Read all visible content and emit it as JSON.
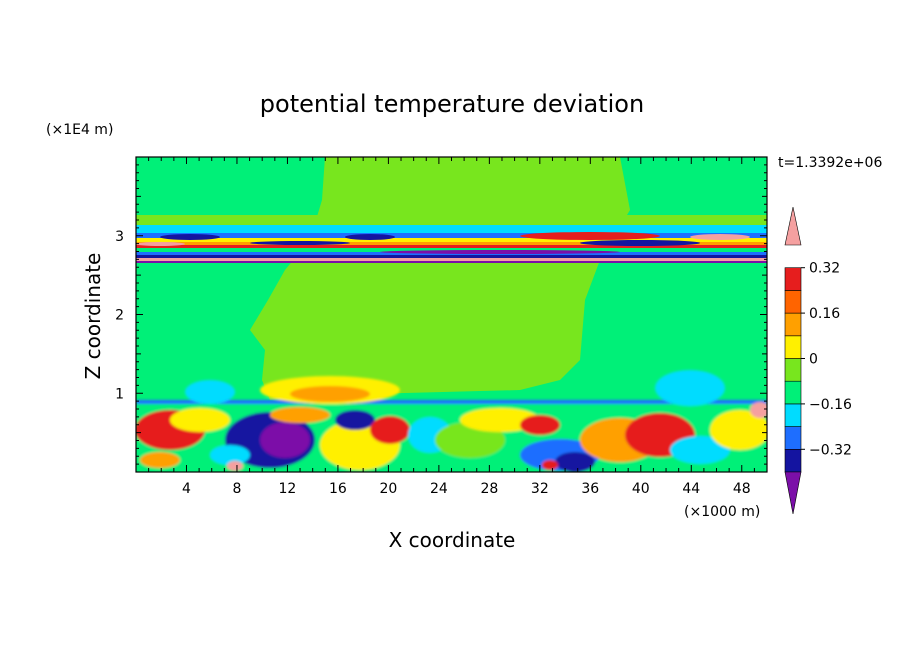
{
  "chart_data": {
    "type": "heatmap",
    "title": "potential temperature deviation",
    "xlabel": "X coordinate",
    "ylabel": "Z coordinate",
    "x_unit": "(×1000 m)",
    "y_unit": "(×1E4 m)",
    "time_label": "t=1.3392e+06",
    "xlim": [
      0,
      50
    ],
    "ylim": [
      0,
      4
    ],
    "x_ticks": [
      4,
      8,
      12,
      16,
      20,
      24,
      28,
      32,
      36,
      40,
      44,
      48
    ],
    "y_ticks": [
      1,
      2,
      3
    ],
    "colorbar": {
      "levels": [
        -0.48,
        -0.4,
        -0.32,
        -0.24,
        -0.16,
        -0.08,
        0,
        0.08,
        0.16,
        0.24,
        0.32,
        0.4
      ],
      "tick_labels": [
        "0.32",
        "0.16",
        "0",
        "−0.16",
        "−0.32"
      ],
      "tick_values": [
        0.32,
        0.16,
        0,
        -0.16,
        -0.32
      ],
      "colors": [
        "#7b0fa8",
        "#1414a0",
        "#1e6eff",
        "#00dcff",
        "#00f078",
        "#78e61e",
        "#fff000",
        "#ffa000",
        "#ff6400",
        "#e61e1e",
        "#f5a0a0"
      ],
      "extend": "both"
    }
  }
}
